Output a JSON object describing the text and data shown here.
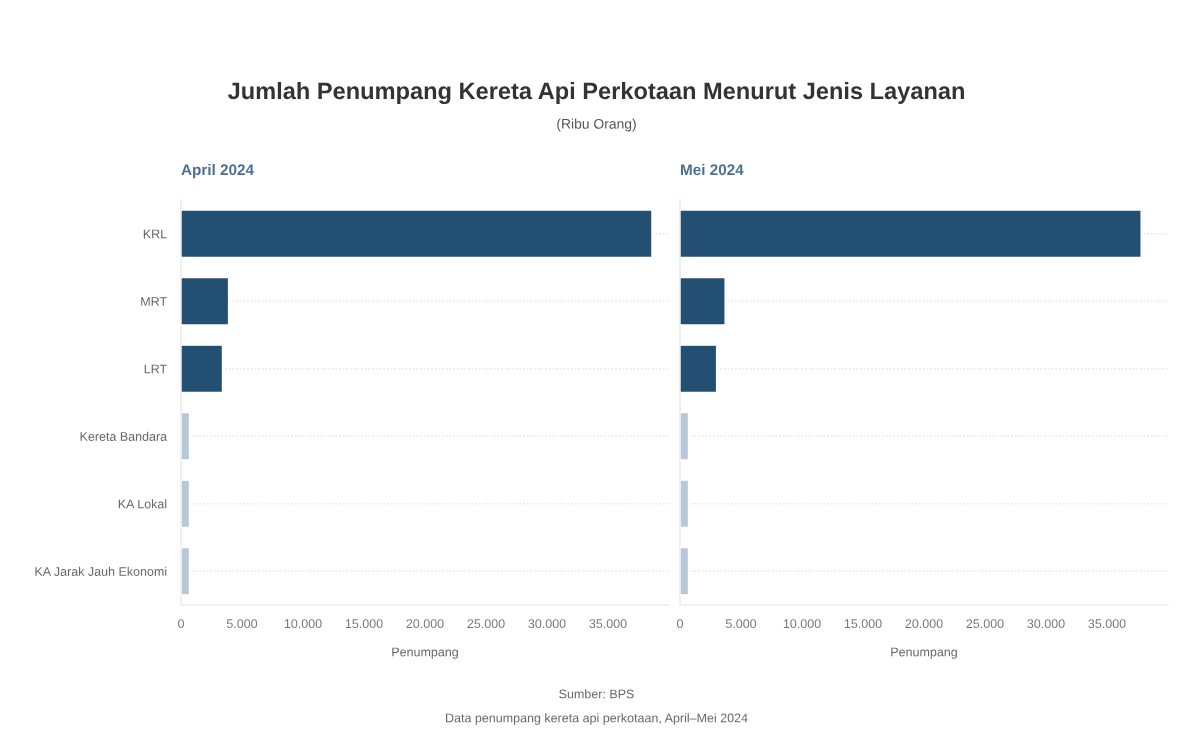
{
  "chart_data": [
    {
      "type": "other",
      "title": "Jumlah Penumpang Kereta Api Perkotaan Menurut Jenis Layanan",
      "subtitle": "(Ribu Orang)",
      "annotations": [
        "Sumber: BPS",
        "Data penumpang kereta api perkotaan, April–Mei 2024"
      ]
    },
    {
      "type": "bar",
      "orientation": "horizontal",
      "title": "April 2024",
      "xlabel": "Penumpang",
      "categories": [
        "KRL",
        "MRT",
        "LRT",
        "Kereta Bandara",
        "KA Lokal",
        "KA Jarak Jauh Ekonomi"
      ],
      "values": [
        38600,
        3900,
        3400,
        700,
        700,
        700
      ],
      "colors": [
        "#224f72",
        "#224f72",
        "#224f72",
        "#b7c8d9",
        "#b7c8d9",
        "#b7c8d9"
      ],
      "xlim": [
        0,
        40000
      ],
      "xticks": [
        0,
        {
          "value": 5000,
          "label": "5.000"
        },
        {
          "value": 10000,
          "label": "10.000"
        },
        {
          "value": 15000,
          "label": "15.000"
        },
        {
          "value": 20000,
          "label": "20.000"
        },
        {
          "value": 25000,
          "label": "25.000"
        },
        {
          "value": 30000,
          "label": "30.000"
        },
        {
          "value": 35000,
          "label": "35.000"
        }
      ],
      "grid": "y"
    },
    {
      "type": "bar",
      "orientation": "horizontal",
      "title": "Mei 2024",
      "xlabel": "Penumpang",
      "categories": [
        null,
        null,
        null,
        null,
        null,
        null
      ],
      "values": [
        37800,
        3700,
        3000,
        700,
        700,
        700
      ],
      "colors": [
        "#224f72",
        "#224f72",
        "#224f72",
        "#b7c8d9",
        "#b7c8d9",
        "#b7c8d9"
      ],
      "xlim": [
        0,
        40000
      ],
      "xticks": [
        0,
        {
          "value": 5000,
          "label": "5.000"
        },
        {
          "value": 10000,
          "label": "10.000"
        },
        {
          "value": 15000,
          "label": "15.000"
        },
        {
          "value": 20000,
          "label": "20.000"
        },
        {
          "value": 25000,
          "label": "25.000"
        },
        {
          "value": 30000,
          "label": "30.000"
        },
        {
          "value": 35000,
          "label": "35.000"
        }
      ],
      "grid": "y"
    }
  ]
}
